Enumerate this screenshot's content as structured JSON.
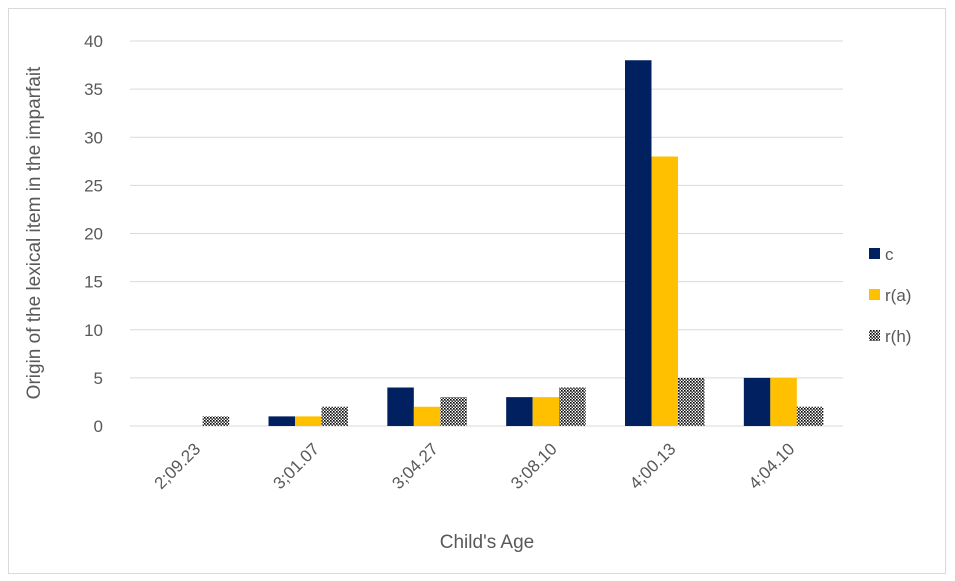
{
  "chart_data": {
    "type": "bar",
    "title": "",
    "xlabel": "Child's Age",
    "ylabel": "Origin of the lexical item in the imparfait",
    "categories": [
      "2;09.23",
      "3;01.07",
      "3;04.27",
      "3;08.10",
      "4;00.13",
      "4;04.10"
    ],
    "ylim": [
      0,
      40
    ],
    "yticks": [
      0,
      5,
      10,
      15,
      20,
      25,
      30,
      35,
      40
    ],
    "grid": true,
    "legend_position": "right",
    "series": [
      {
        "name": "c",
        "color": "#002060",
        "pattern": "solid",
        "values": [
          0,
          1,
          4,
          3,
          38,
          5
        ]
      },
      {
        "name": "r(a)",
        "color": "#FFC000",
        "pattern": "solid",
        "values": [
          0,
          1,
          2,
          3,
          28,
          5
        ]
      },
      {
        "name": "r(h)",
        "color": "#000000",
        "pattern": "dotted",
        "values": [
          1,
          2,
          3,
          4,
          5,
          2
        ]
      }
    ]
  }
}
